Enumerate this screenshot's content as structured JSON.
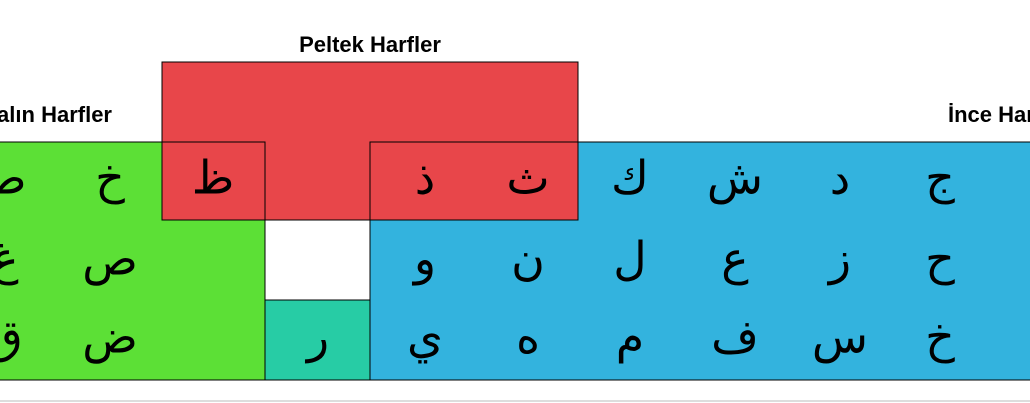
{
  "groups": {
    "peltek": {
      "title": "Peltek Harfler",
      "letters": [
        "ظ",
        "ذ",
        "ث"
      ]
    },
    "kalin": {
      "title": "Kalın Harfler",
      "letters": [
        "ط",
        "غ",
        "ق",
        "خ",
        "ص",
        "ض"
      ]
    },
    "ince": {
      "title": "İnce Harfler",
      "rows": [
        [
          "ك",
          "ش",
          "د",
          "ج"
        ],
        [
          "و",
          "ن",
          "ل",
          "ع",
          "ز",
          "ح"
        ],
        [
          "ي",
          "ه",
          "م",
          "ف",
          "س",
          "خ"
        ]
      ]
    },
    "other": {
      "letters": [
        "ر"
      ]
    }
  }
}
